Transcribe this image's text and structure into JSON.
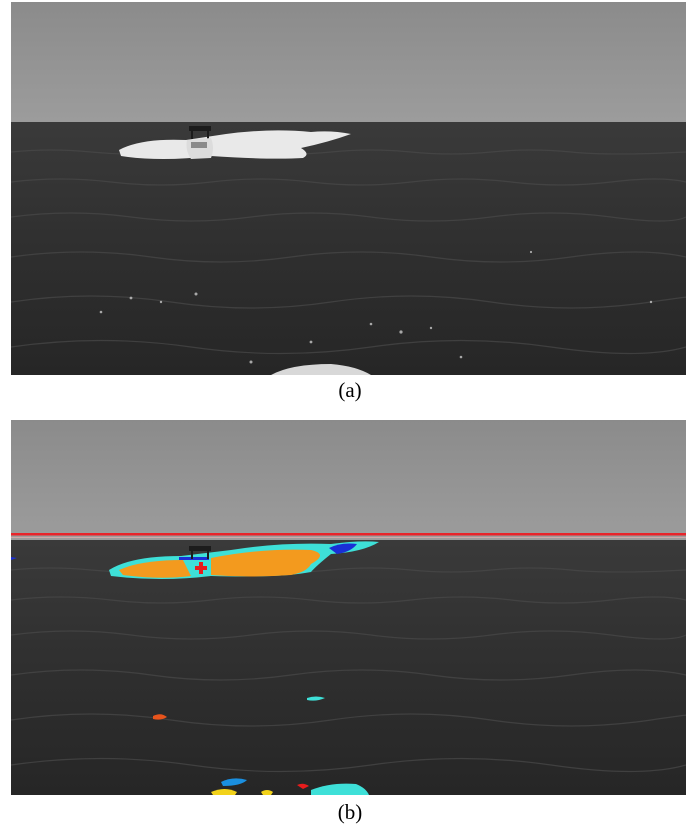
{
  "figure": {
    "panels": [
      {
        "id": "a",
        "caption": "(a)",
        "content": "sea-photo-boat"
      },
      {
        "id": "b",
        "caption": "(b)",
        "content": "sea-photo-segmented"
      }
    ]
  },
  "colors": {
    "horizon_line": "#e8242a",
    "segment_orange": "#f39a1e",
    "segment_cyan": "#3ee0d8",
    "segment_blue": "#1a2fd6",
    "segment_red": "#e81c1c",
    "segment_yellow": "#f2d21a"
  }
}
